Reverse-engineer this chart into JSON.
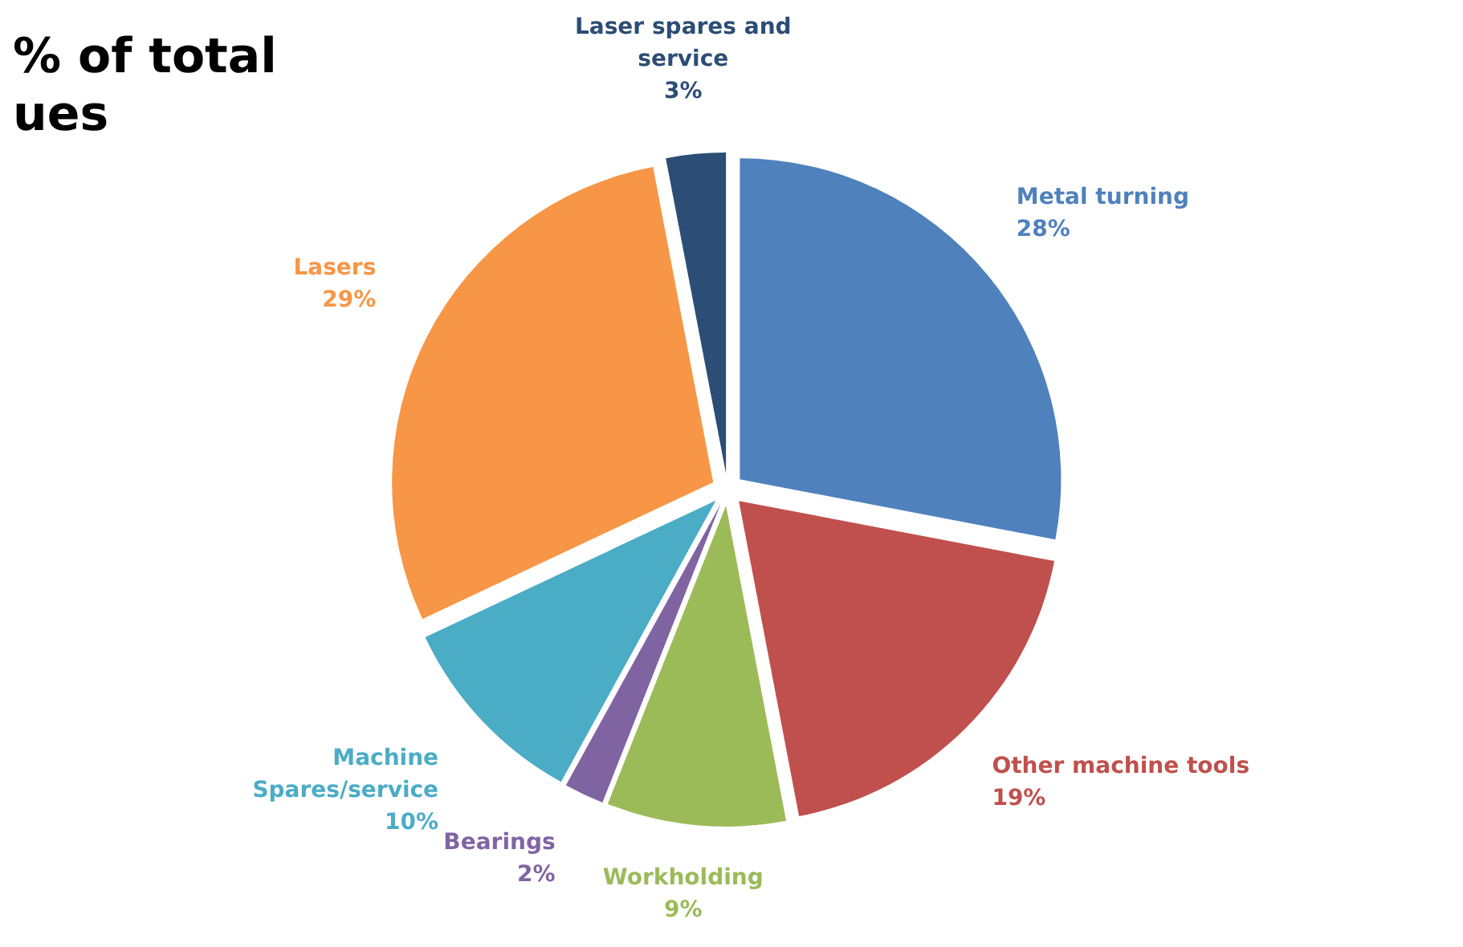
{
  "chart_data": {
    "type": "pie",
    "title": "% of total\nues",
    "categories": [
      "Metal turning",
      "Other machine tools",
      "Workholding",
      "Bearings",
      "Machine\nSpares/service",
      "Lasers",
      "Laser spares and\nservice"
    ],
    "values": [
      28,
      19,
      9,
      2,
      10,
      29,
      3
    ],
    "value_labels": [
      "28%",
      "19%",
      "9%",
      "2%",
      "10%",
      "29%",
      "3%"
    ],
    "colors": [
      "#4f81bd",
      "#c0504d",
      "#9bbb59",
      "#8064a2",
      "#4bacc6",
      "#f79646",
      "#2c4d75"
    ]
  }
}
